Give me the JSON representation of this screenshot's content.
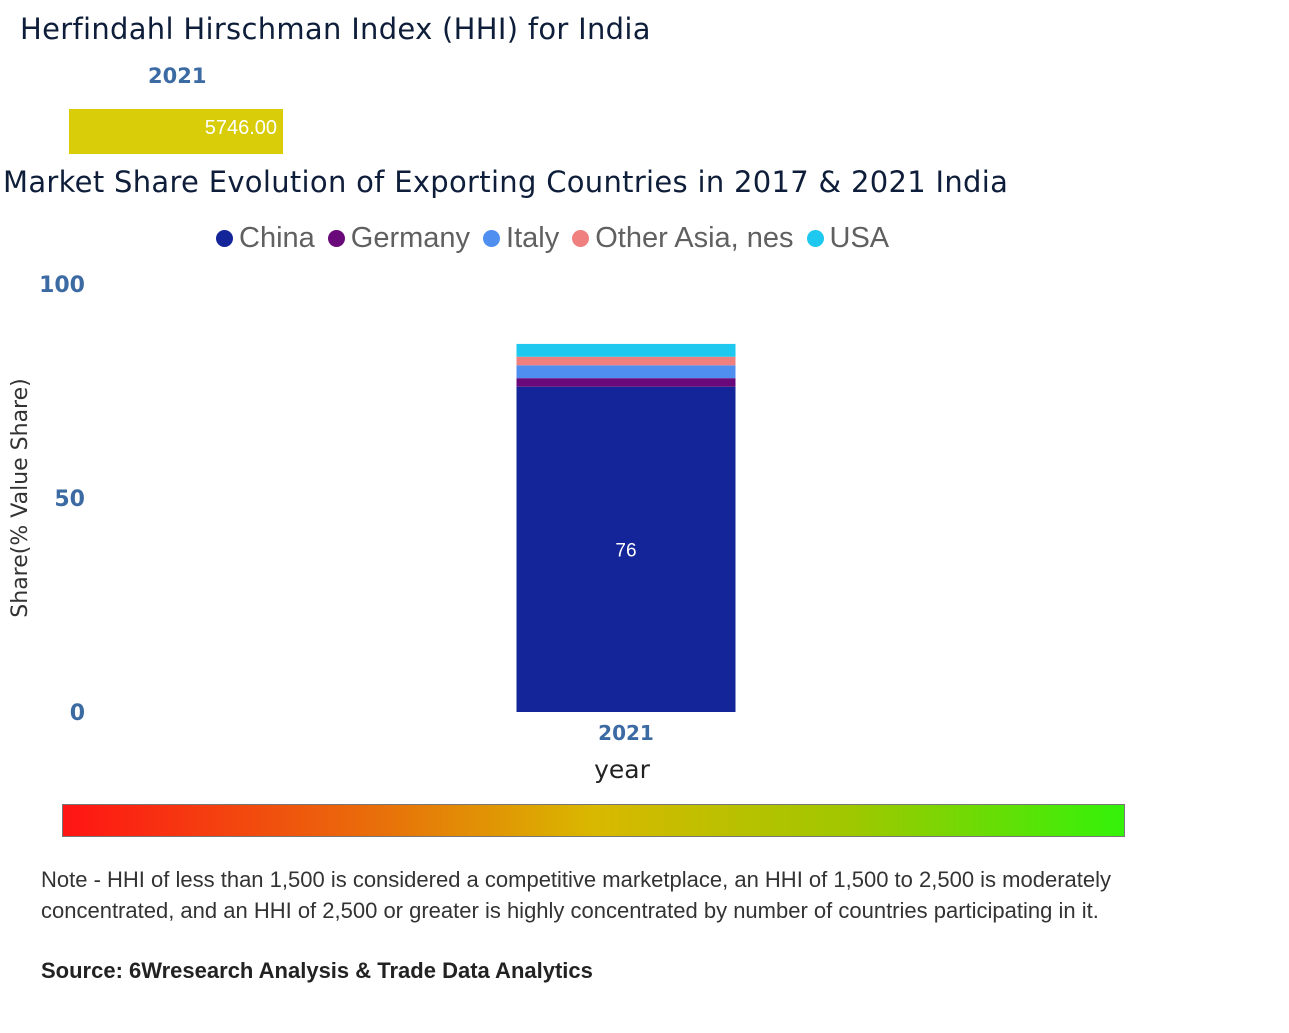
{
  "hhi": {
    "title": "Herfindahl Hirschman Index (HHI) for India",
    "year": "2021",
    "value": "5746.00",
    "bar_color": "#d9cc09"
  },
  "chart_data": {
    "type": "bar",
    "stacked": true,
    "title": "Market Share Evolution of Exporting Countries in 2017 & 2021 India",
    "categories": [
      "2021"
    ],
    "series": [
      {
        "name": "China",
        "values": [
          76
        ],
        "color": "#14259a",
        "label": "76"
      },
      {
        "name": "Germany",
        "values": [
          2
        ],
        "color": "#6a0a7a"
      },
      {
        "name": "Italy",
        "values": [
          3
        ],
        "color": "#4e8ff0"
      },
      {
        "name": "Other Asia, nes",
        "values": [
          2
        ],
        "color": "#f07f7f"
      },
      {
        "name": "USA",
        "values": [
          3
        ],
        "color": "#1ec8ee"
      }
    ],
    "xlabel": "year",
    "ylabel": "Share(% Value Share)",
    "ylim": [
      0,
      100
    ],
    "yticks": [
      "0",
      "50",
      "100"
    ],
    "legend_position": "top"
  },
  "note": "Note - HHI of less than 1,500 is considered a competitive marketplace, an HHI of 1,500 to 2,500 is moderately concentrated, and an HHI of 2,500 or greater is highly concentrated by number of countries participating in it.",
  "source": "Source: 6Wresearch Analysis & Trade Data Analytics"
}
